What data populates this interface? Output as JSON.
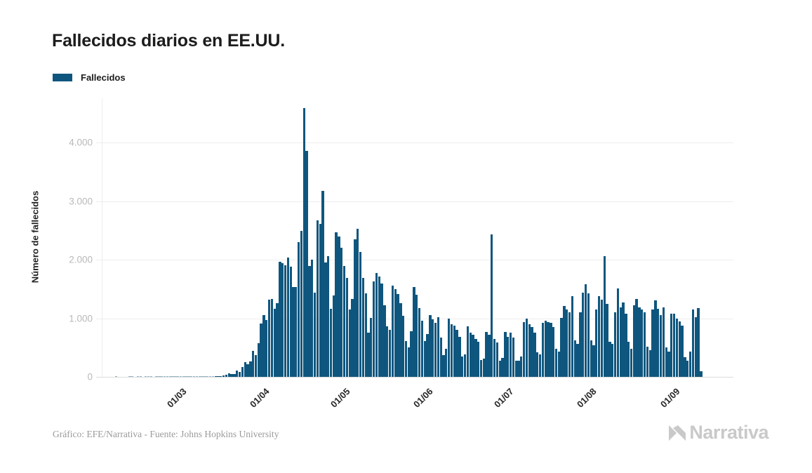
{
  "header": {
    "title": "Fallecidos diarios en EE.UU."
  },
  "legend": {
    "items": [
      {
        "label": "Fallecidos",
        "color": "#0F567E"
      }
    ]
  },
  "footer": {
    "credit": "Gráfico: EFE/Narrativa - Fuente: Johns Hopkins University",
    "logo_text": "Narrativa"
  },
  "chart_data": {
    "type": "bar",
    "title": "Fallecidos diarios en EE.UU.",
    "series_name": "Fallecidos",
    "xlabel": "",
    "ylabel": "Número de fallecidos",
    "bar_color": "#0F567E",
    "grid": "horizontal-only",
    "legend_position": "top-left",
    "ylim": [
      0,
      4750
    ],
    "yticks": [
      {
        "value": 0,
        "label": "0"
      },
      {
        "value": 1000,
        "label": "1.000"
      },
      {
        "value": 2000,
        "label": "2.000"
      },
      {
        "value": 3000,
        "label": "3.000"
      },
      {
        "value": 4000,
        "label": "4.000"
      }
    ],
    "x_unit": "day",
    "x_start": "01/02/2020",
    "xticks": [
      {
        "index": 29,
        "label": "01/03"
      },
      {
        "index": 60,
        "label": "01/04"
      },
      {
        "index": 90,
        "label": "01/05"
      },
      {
        "index": 121,
        "label": "01/06"
      },
      {
        "index": 151,
        "label": "01/07"
      },
      {
        "index": 182,
        "label": "01/08"
      },
      {
        "index": 213,
        "label": "01/09"
      }
    ],
    "values": [
      0,
      0,
      0,
      0,
      0,
      1,
      0,
      0,
      0,
      0,
      1,
      1,
      0,
      1,
      1,
      0,
      1,
      1,
      1,
      0,
      1,
      1,
      1,
      1,
      1,
      1,
      1,
      1,
      2,
      1,
      1,
      4,
      3,
      2,
      3,
      4,
      3,
      4,
      4,
      4,
      7,
      6,
      10,
      11,
      18,
      23,
      41,
      57,
      49,
      46,
      111,
      80,
      164,
      247,
      217,
      268,
      441,
      368,
      573,
      912,
      1050,
      968,
      1321,
      1331,
      1165,
      1255,
      1970,
      1940,
      1901,
      2035,
      1877,
      1528,
      1535,
      2299,
      2494,
      4591,
      3857,
      1891,
      1997,
      1433,
      2674,
      2613,
      3176,
      1954,
      2065,
      1157,
      1384,
      2470,
      2390,
      2201,
      1897,
      1691,
      1154,
      1324,
      2350,
      2528,
      2129,
      1687,
      1422,
      750,
      1008,
      1630,
      1772,
      1715,
      1595,
      1218,
      865,
      808,
      1552,
      1500,
      1418,
      1260,
      1044,
      605,
      500,
      774,
      1535,
      1400,
      1175,
      960,
      605,
      730,
      1053,
      978,
      920,
      1024,
      670,
      373,
      480,
      990,
      900,
      870,
      800,
      680,
      350,
      380,
      860,
      750,
      720,
      650,
      600,
      290,
      310,
      770,
      720,
      2437,
      650,
      590,
      280,
      320,
      770,
      680,
      750,
      670,
      280,
      270,
      350,
      930,
      1000,
      900,
      850,
      750,
      420,
      380,
      920,
      960,
      940,
      920,
      850,
      480,
      430,
      1010,
      1205,
      1150,
      1100,
      1380,
      620,
      560,
      1100,
      1440,
      1580,
      1420,
      620,
      540,
      1150,
      1380,
      1320,
      2060,
      1240,
      600,
      560,
      1100,
      1510,
      1190,
      1270,
      1080,
      600,
      480,
      1220,
      1330,
      1190,
      1150,
      1100,
      510,
      450,
      1150,
      1300,
      1160,
      1050,
      1180,
      500,
      430,
      1080,
      1080,
      1000,
      950,
      880,
      330,
      280,
      430,
      1150,
      1020,
      1170,
      90
    ]
  }
}
